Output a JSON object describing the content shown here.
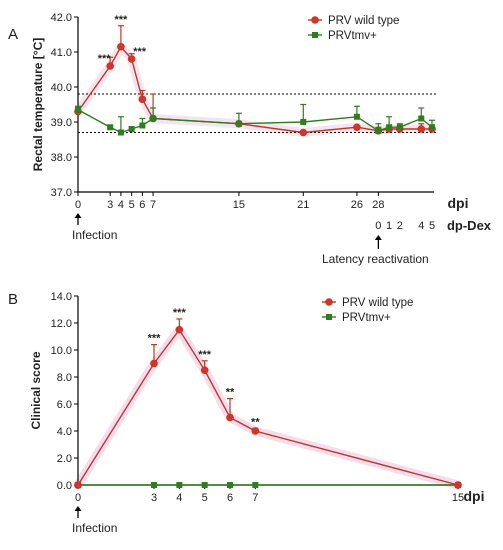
{
  "colors": {
    "wild": "#b83a1e",
    "tmv": "#2e7d1e",
    "axis": "#000000",
    "panel_a_shade": "#f4e4f1",
    "panel_b_shade": "#f6dbef",
    "marker_wild": "#d8322a"
  },
  "chart_data": [
    {
      "panel": "A",
      "type": "line",
      "ylabel": "Rectal temperature [°C]",
      "ylim": [
        37.0,
        42.0
      ],
      "yticks": [
        "37.0",
        "38.0",
        "39.0",
        "40.0",
        "41.0",
        "42.0"
      ],
      "xlim": [
        0,
        33
      ],
      "xticks": [
        0,
        3,
        4,
        5,
        6,
        7,
        15,
        21,
        26,
        28
      ],
      "xtick_labels": [
        "0",
        "3",
        "4",
        "5",
        "6",
        "7",
        "15",
        "21",
        "26",
        "28"
      ],
      "xlabel": "dpi",
      "dex_label": "dp-Dex",
      "dex_ticks": [
        {
          "x": 28,
          "label": "0"
        },
        {
          "x": 29,
          "label": "1"
        },
        {
          "x": 30,
          "label": "2"
        },
        {
          "x": 32,
          "label": "4"
        },
        {
          "x": 33,
          "label": "5"
        }
      ],
      "reference_lines": [
        39.8,
        38.7
      ],
      "legend": "top-right",
      "annotation_infection": "Infection",
      "annotation_reactivation": "Latency reactivation",
      "series": [
        {
          "name": "PRV wild type",
          "color": "#b83a1e",
          "marker": "circle",
          "x": [
            0,
            3,
            4,
            5,
            6,
            7,
            15,
            21,
            26,
            28,
            29,
            30,
            32,
            33
          ],
          "y": [
            39.3,
            40.6,
            41.15,
            40.8,
            39.65,
            39.1,
            38.95,
            38.7,
            38.85,
            38.75,
            38.8,
            38.8,
            38.8,
            38.8
          ],
          "err": [
            0.1,
            0.25,
            0.6,
            0.15,
            0.25,
            0.7,
            0,
            0,
            0,
            0.1,
            0,
            0,
            0.15,
            0
          ],
          "sig": [
            null,
            "***",
            "***",
            "***",
            null,
            null,
            null,
            null,
            null,
            null,
            null,
            null,
            null,
            null
          ]
        },
        {
          "name": "PRVtmv+",
          "color": "#2e7d1e",
          "marker": "square",
          "x": [
            0,
            3,
            4,
            5,
            6,
            7,
            15,
            21,
            26,
            28,
            29,
            30,
            32,
            33
          ],
          "y": [
            39.35,
            38.85,
            38.7,
            38.8,
            38.9,
            39.1,
            38.95,
            39.0,
            39.15,
            38.75,
            38.85,
            38.85,
            39.1,
            38.85
          ],
          "err": [
            0.1,
            0,
            0.45,
            0,
            0.2,
            0.3,
            0.3,
            0.5,
            0.3,
            0.2,
            0.3,
            0.1,
            0.3,
            0.2
          ]
        }
      ]
    },
    {
      "panel": "B",
      "type": "line",
      "ylabel": "Clinical score",
      "ylim": [
        0,
        14
      ],
      "yticks": [
        "0.0",
        "2.0",
        "4.0",
        "6.0",
        "8.0",
        "10.0",
        "12.0",
        "14.0"
      ],
      "xlim": [
        0,
        15
      ],
      "xticks": [
        0,
        3,
        4,
        5,
        6,
        7,
        15
      ],
      "xtick_labels": [
        "0",
        "3",
        "4",
        "5",
        "6",
        "7",
        "15"
      ],
      "xlabel": "dpi",
      "legend": "top-right",
      "annotation_infection": "Infection",
      "series": [
        {
          "name": "PRV wild type",
          "color": "#b83a1e",
          "marker": "circle",
          "x": [
            0,
            3,
            4,
            5,
            6,
            7,
            15
          ],
          "y": [
            0,
            9.0,
            11.5,
            8.5,
            5.0,
            4.0,
            0
          ],
          "err": [
            0,
            1.4,
            0.8,
            0.7,
            1.4,
            0.2,
            0
          ],
          "sig": [
            null,
            "***",
            "***",
            "***",
            "**",
            "**",
            null
          ]
        },
        {
          "name": "PRVtmv+",
          "color": "#2e7d1e",
          "marker": "square",
          "x": [
            0,
            3,
            4,
            5,
            6,
            7,
            15
          ],
          "y": [
            0,
            0,
            0,
            0,
            0,
            0,
            0
          ]
        }
      ]
    }
  ]
}
